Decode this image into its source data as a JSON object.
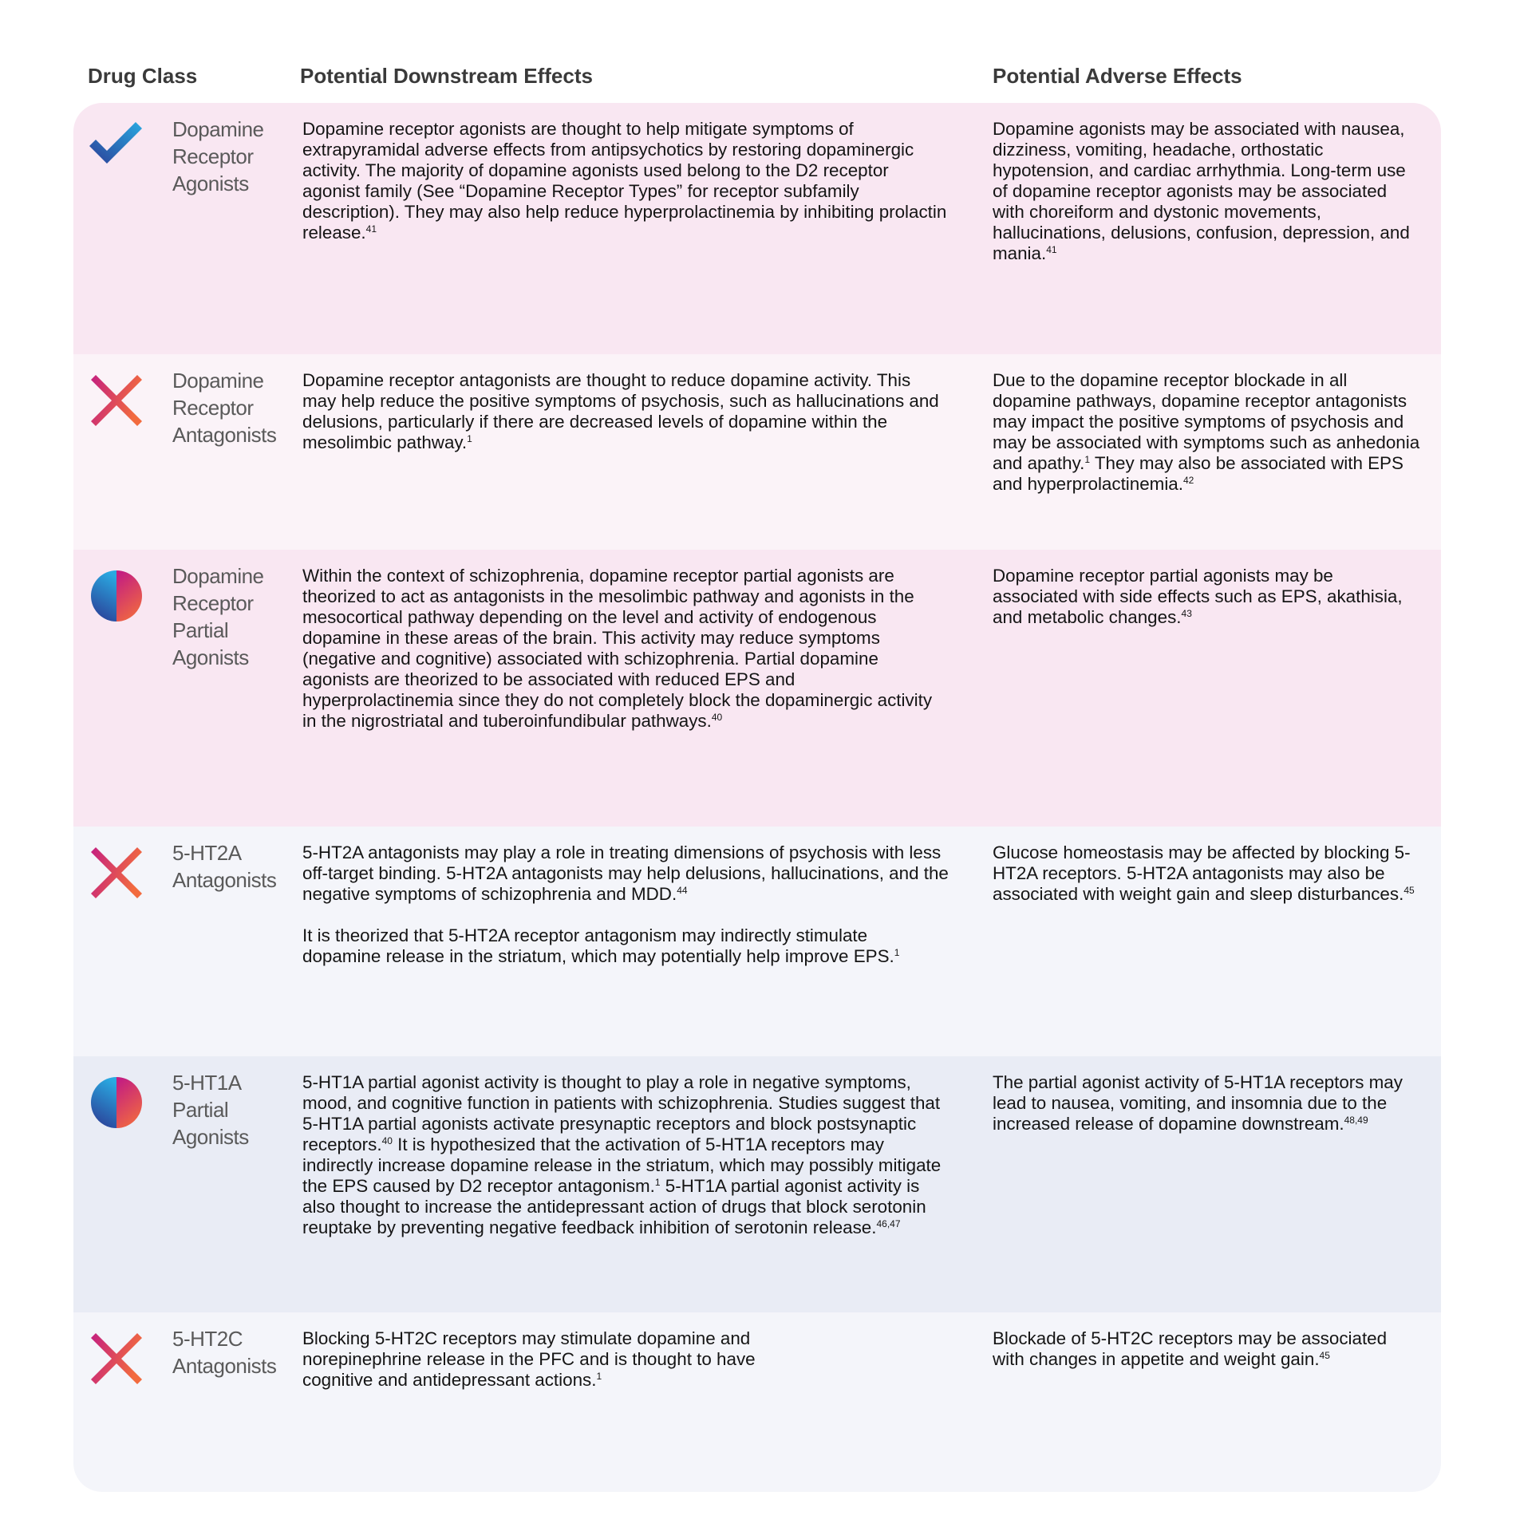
{
  "headers": {
    "drug_class": "Drug Class",
    "downstream": "Potential Downstream Effects",
    "adverse": "Potential Adverse Effects"
  },
  "colors": {
    "row_pink": "#f9e7f2",
    "row_light_pink": "#fbf3f8",
    "row_light_blue": "#f4f5fa",
    "row_blue": "#e9ecf5",
    "blue_start": "#2b3f97",
    "blue_end": "#2aa9e1",
    "magenta": "#c41f80",
    "orange": "#f26b3e"
  },
  "rows": [
    {
      "icon": "check-icon",
      "bg": "#f9e7f2",
      "height": 315,
      "name": [
        "Dopamine",
        "Receptor",
        "Agonists"
      ],
      "downstream": [
        [
          {
            "text": "Dopamine receptor agonists are thought to help mitigate symptoms of extrapyramidal adverse effects from antipsychotics by restoring dopaminergic activity. The majority of dopamine agonists used belong to the D2 receptor agonist family (See “Dopamine Receptor Types” for receptor subfamily description). They may also help reduce hyperprolactinemia by inhibiting prolactin release.",
            "sup": "41"
          }
        ]
      ],
      "adverse": [
        [
          {
            "text": "Dopamine agonists may be associated with nausea, dizziness, vomiting, headache, orthostatic hypotension, and cardiac arrhythmia. Long-term use of dopamine receptor agonists may be associated with choreiform and dystonic movements, hallucinations, delusions, confusion, depression, and mania.",
            "sup": "41"
          }
        ]
      ]
    },
    {
      "icon": "x-icon",
      "bg": "#fbf3f8",
      "height": 245,
      "name": [
        "Dopamine",
        "Receptor",
        "Antagonists"
      ],
      "downstream": [
        [
          {
            "text": "Dopamine receptor antagonists are thought to reduce dopamine activity. This may help reduce the positive symptoms of psychosis, such as hallucinations and delusions, particularly if there are decreased levels of dopamine within the mesolimbic pathway.",
            "sup": "1"
          }
        ]
      ],
      "adverse": [
        [
          {
            "text": "Due to the dopamine receptor blockade in all dopamine pathways, dopamine receptor antagonists may impact the positive symptoms of psychosis and may be associated with symptoms such as anhedonia and apathy.",
            "sup": "1"
          },
          {
            "text": " They may also be associated with EPS and hyperprolactinemia.",
            "sup": "42"
          }
        ]
      ]
    },
    {
      "icon": "half-circle-icon",
      "bg": "#f9e7f2",
      "height": 347,
      "name": [
        "Dopamine",
        "Receptor",
        "Partial",
        "Agonists"
      ],
      "downstream": [
        [
          {
            "text": "Within the context of schizophrenia, dopamine receptor partial agonists are theorized to act as antagonists in the mesolimbic pathway and agonists in the mesocortical pathway depending on the level and activity of endogenous dopamine in these areas of the brain. This activity may reduce symptoms (negative and cognitive) associated with schizophrenia. Partial dopamine agonists are theorized to be associated with reduced EPS and hyperprolactinemia since they do not completely block the dopaminergic activity in the nigrostriatal and tuberoinfundibular pathways.",
            "sup": "40"
          }
        ]
      ],
      "adverse": [
        [
          {
            "text": "Dopamine receptor partial agonists may be associated with side effects such as EPS, akathisia, and metabolic changes.",
            "sup": "43"
          }
        ]
      ]
    },
    {
      "icon": "x-icon",
      "bg": "#f4f5fa",
      "height": 288,
      "name": [
        "5-HT2A",
        "Antagonists"
      ],
      "downstream": [
        [
          {
            "text": "5-HT2A antagonists may play a role in treating dimensions of psychosis with less off-target binding. 5-HT2A antagonists may help delusions, hallucinations, and the negative symptoms of schizophrenia and MDD.",
            "sup": "44"
          }
        ],
        [
          {
            "text": "It is theorized that 5-HT2A receptor antagonism may indirectly stimulate dopamine release in the striatum, which may potentially help improve EPS.",
            "sup": "1"
          }
        ]
      ],
      "adverse": [
        [
          {
            "text": "Glucose homeostasis may be affected by blocking 5-HT2A receptors. 5-HT2A antagonists may also be associated with weight gain and sleep disturbances.",
            "sup": "45"
          }
        ]
      ]
    },
    {
      "icon": "half-circle-icon",
      "bg": "#e9ecf5",
      "height": 321,
      "name": [
        "5-HT1A",
        "Partial",
        "Agonists"
      ],
      "downstream": [
        [
          {
            "text": "5-HT1A partial agonist activity is thought to play a role in negative symptoms, mood, and cognitive function in patients with schizophrenia. Studies suggest that 5-HT1A partial agonists activate presynaptic receptors and block postsynaptic receptors.",
            "sup": "40"
          },
          {
            "text": " It is hypothesized that the activation of 5-HT1A receptors may indirectly increase dopamine release in the striatum, which may possibly mitigate the EPS caused by D2 receptor antagonism.",
            "sup": "1"
          },
          {
            "text": " 5-HT1A partial agonist activity is also thought to increase the antidepressant action of drugs that block serotonin reuptake by preventing negative feedback inhibition of serotonin release.",
            "sup": "46,47"
          }
        ]
      ],
      "adverse": [
        [
          {
            "text": "The partial agonist activity of 5-HT1A receptors may lead to nausea, vomiting, and insomnia due to the increased release of dopamine downstream.",
            "sup": "48,49"
          }
        ]
      ]
    },
    {
      "icon": "x-icon",
      "bg": "#f4f5fa",
      "height": 225,
      "name": [
        "5-HT2C",
        "Antagonists"
      ],
      "downstream": [
        [
          {
            "text": "Blocking 5-HT2C receptors may stimulate dopamine and norepinephrine release in the PFC and is thought to have cognitive and antidepressant actions.",
            "sup": "1"
          }
        ]
      ],
      "adverse": [
        [
          {
            "text": "Blockade of 5-HT2C receptors may be associated with changes in appetite and weight gain.",
            "sup": "45"
          }
        ]
      ]
    }
  ]
}
